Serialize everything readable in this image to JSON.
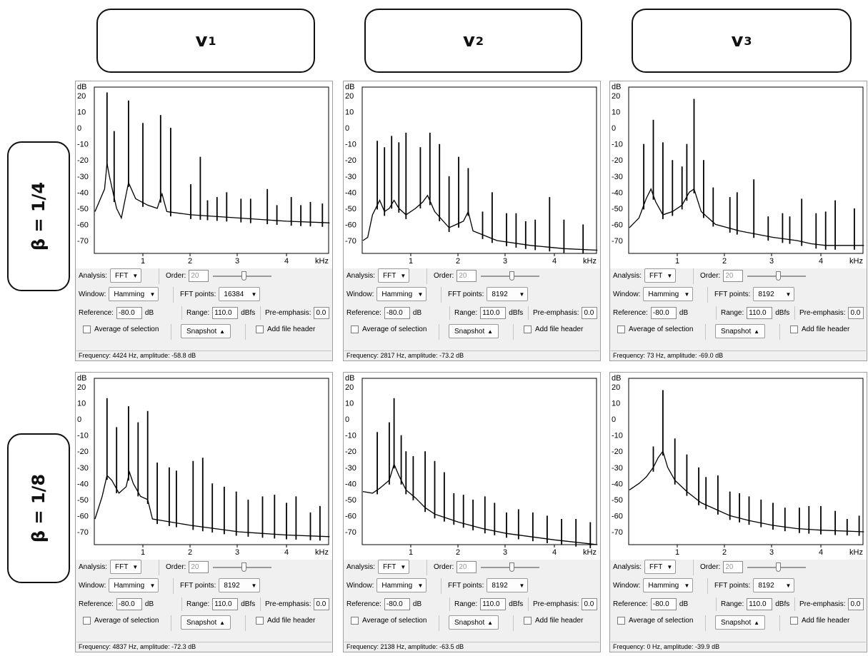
{
  "col_headers": [
    {
      "base": "v",
      "sub": "1"
    },
    {
      "base": "v",
      "sub": "2"
    },
    {
      "base": "v",
      "sub": "3"
    }
  ],
  "row_headers": [
    "β = 1/4",
    "β = 1/8"
  ],
  "common": {
    "db_unit": "dB",
    "khz_unit": "kHz",
    "y_ticks": [
      "20",
      "10",
      "0",
      "-10",
      "-20",
      "-30",
      "-40",
      "-50",
      "-60",
      "-70"
    ],
    "x_ticks": [
      "1",
      "2",
      "3",
      "4"
    ],
    "analysis_label": "Analysis:",
    "analysis_value": "FFT",
    "order_label": "Order:",
    "order_value": "20",
    "window_label": "Window:",
    "window_value": "Hamming",
    "fft_points_label": "FFT points:",
    "reference_label": "Reference:",
    "reference_value": "-80.0",
    "reference_unit": "dB",
    "range_label": "Range:",
    "range_value": "110.0",
    "range_unit": "dBfs",
    "preemphasis_label": "Pre-emphasis:",
    "preemphasis_value": "0.0",
    "average_label": "Average of selection",
    "snapshot_label": "Snapshot",
    "add_header_label": "Add file header"
  },
  "panels": [
    {
      "fft_points": "16384",
      "status": "Frequency: 4424 Hz, amplitude: -58.8 dB"
    },
    {
      "fft_points": "8192",
      "status": "Frequency: 2817 Hz, amplitude: -73.2 dB"
    },
    {
      "fft_points": "8192",
      "status": "Frequency: 73 Hz, amplitude: -69.0 dB"
    },
    {
      "fft_points": "8192",
      "status": "Frequency: 4837 Hz, amplitude: -72.3 dB"
    },
    {
      "fft_points": "8192",
      "status": "Frequency: 2138 Hz, amplitude: -63.5 dB"
    },
    {
      "fft_points": "8192",
      "status": "Frequency: 0 Hz, amplitude: -39.9 dB"
    }
  ],
  "chart_data": [
    {
      "type": "line",
      "xlabel": "kHz",
      "ylabel": "dB",
      "xlim": [
        0,
        4.9
      ],
      "ylim": [
        -80,
        25
      ],
      "baseline": [
        [
          0,
          -52
        ],
        [
          0.2,
          -38
        ],
        [
          0.25,
          -22
        ],
        [
          0.3,
          -30
        ],
        [
          0.45,
          -50
        ],
        [
          0.55,
          -56
        ],
        [
          0.7,
          -34
        ],
        [
          0.85,
          -44
        ],
        [
          1.1,
          -48
        ],
        [
          1.3,
          -50
        ],
        [
          1.4,
          -41
        ],
        [
          1.5,
          -52
        ],
        [
          2,
          -54
        ],
        [
          3,
          -56
        ],
        [
          4,
          -58
        ],
        [
          4.9,
          -59
        ]
      ],
      "peaks": [
        [
          0.25,
          22
        ],
        [
          0.4,
          -2
        ],
        [
          0.7,
          17
        ],
        [
          1.0,
          3
        ],
        [
          1.58,
          0
        ],
        [
          1.37,
          8
        ],
        [
          2.2,
          -18
        ],
        [
          2.0,
          -35
        ],
        [
          2.35,
          -45
        ],
        [
          2.55,
          -43
        ],
        [
          2.75,
          -40
        ],
        [
          3.05,
          -44
        ],
        [
          3.25,
          -44
        ],
        [
          3.6,
          -38
        ],
        [
          3.8,
          -48
        ],
        [
          4.1,
          -43
        ],
        [
          4.3,
          -48
        ],
        [
          4.5,
          -46
        ],
        [
          4.75,
          -47
        ]
      ]
    },
    {
      "type": "line",
      "xlabel": "kHz",
      "ylabel": "dB",
      "xlim": [
        0,
        4.9
      ],
      "ylim": [
        -80,
        25
      ],
      "baseline": [
        [
          0,
          -70
        ],
        [
          0.1,
          -68
        ],
        [
          0.2,
          -54
        ],
        [
          0.35,
          -45
        ],
        [
          0.45,
          -52
        ],
        [
          0.55,
          -50
        ],
        [
          0.65,
          -45
        ],
        [
          0.75,
          -50
        ],
        [
          0.9,
          -54
        ],
        [
          1.1,
          -50
        ],
        [
          1.25,
          -46
        ],
        [
          1.35,
          -42
        ],
        [
          1.5,
          -52
        ],
        [
          1.8,
          -62
        ],
        [
          2.1,
          -58
        ],
        [
          2.2,
          -52
        ],
        [
          2.3,
          -64
        ],
        [
          2.8,
          -70
        ],
        [
          3.5,
          -73
        ],
        [
          4.2,
          -75
        ],
        [
          4.9,
          -76
        ]
      ],
      "peaks": [
        [
          0.3,
          -8
        ],
        [
          0.45,
          -12
        ],
        [
          0.6,
          -5
        ],
        [
          0.75,
          -9
        ],
        [
          0.9,
          -3
        ],
        [
          1.2,
          -12
        ],
        [
          1.4,
          -3
        ],
        [
          1.6,
          -10
        ],
        [
          1.8,
          -30
        ],
        [
          2.0,
          -18
        ],
        [
          2.2,
          -25
        ],
        [
          2.5,
          -52
        ],
        [
          2.7,
          -40
        ],
        [
          3.0,
          -53
        ],
        [
          3.2,
          -53
        ],
        [
          3.4,
          -58
        ],
        [
          3.6,
          -57
        ],
        [
          3.9,
          -43
        ],
        [
          4.2,
          -57
        ],
        [
          4.6,
          -60
        ]
      ]
    },
    {
      "type": "line",
      "xlabel": "kHz",
      "ylabel": "dB",
      "xlim": [
        0,
        4.9
      ],
      "ylim": [
        -80,
        25
      ],
      "baseline": [
        [
          0,
          -62
        ],
        [
          0.2,
          -56
        ],
        [
          0.35,
          -44
        ],
        [
          0.45,
          -38
        ],
        [
          0.55,
          -46
        ],
        [
          0.7,
          -54
        ],
        [
          0.9,
          -52
        ],
        [
          1.1,
          -48
        ],
        [
          1.25,
          -40
        ],
        [
          1.35,
          -38
        ],
        [
          1.5,
          -52
        ],
        [
          1.8,
          -60
        ],
        [
          2.3,
          -64
        ],
        [
          3.0,
          -68
        ],
        [
          3.5,
          -70
        ],
        [
          3.8,
          -72
        ],
        [
          4.1,
          -73
        ],
        [
          4.9,
          -73
        ]
      ],
      "peaks": [
        [
          0.3,
          -10
        ],
        [
          0.5,
          5
        ],
        [
          0.7,
          -9
        ],
        [
          0.9,
          -20
        ],
        [
          1.1,
          -24
        ],
        [
          1.2,
          -10
        ],
        [
          1.35,
          18
        ],
        [
          1.55,
          -20
        ],
        [
          1.75,
          -37
        ],
        [
          2.1,
          -43
        ],
        [
          2.25,
          -40
        ],
        [
          2.6,
          -32
        ],
        [
          2.9,
          -55
        ],
        [
          3.2,
          -53
        ],
        [
          3.35,
          -55
        ],
        [
          3.6,
          -44
        ],
        [
          3.9,
          -53
        ],
        [
          4.1,
          -52
        ],
        [
          4.3,
          -45
        ],
        [
          4.7,
          -50
        ]
      ]
    },
    {
      "type": "line",
      "xlabel": "kHz",
      "ylabel": "dB",
      "xlim": [
        0,
        4.9
      ],
      "ylim": [
        -80,
        25
      ],
      "baseline": [
        [
          0,
          -62
        ],
        [
          0.15,
          -48
        ],
        [
          0.25,
          -35
        ],
        [
          0.35,
          -38
        ],
        [
          0.5,
          -46
        ],
        [
          0.65,
          -42
        ],
        [
          0.72,
          -33
        ],
        [
          0.8,
          -40
        ],
        [
          0.95,
          -48
        ],
        [
          1.1,
          -50
        ],
        [
          1.2,
          -62
        ],
        [
          1.6,
          -64
        ],
        [
          2.0,
          -66
        ],
        [
          2.5,
          -68
        ],
        [
          3.0,
          -70
        ],
        [
          3.5,
          -71
        ],
        [
          4.0,
          -72
        ],
        [
          4.9,
          -73
        ]
      ],
      "peaks": [
        [
          0.25,
          13
        ],
        [
          0.45,
          -5
        ],
        [
          0.7,
          8
        ],
        [
          0.9,
          -2
        ],
        [
          1.1,
          5
        ],
        [
          1.3,
          -27
        ],
        [
          1.55,
          -30
        ],
        [
          1.7,
          -32
        ],
        [
          2.05,
          -26
        ],
        [
          2.25,
          -24
        ],
        [
          2.45,
          -40
        ],
        [
          2.7,
          -42
        ],
        [
          2.95,
          -45
        ],
        [
          3.2,
          -50
        ],
        [
          3.5,
          -48
        ],
        [
          3.75,
          -47
        ],
        [
          4.0,
          -52
        ],
        [
          4.2,
          -48
        ],
        [
          4.5,
          -58
        ],
        [
          4.7,
          -54
        ]
      ]
    },
    {
      "type": "line",
      "xlabel": "kHz",
      "ylabel": "dB",
      "xlim": [
        0,
        4.9
      ],
      "ylim": [
        -80,
        25
      ],
      "baseline": [
        [
          0,
          -45
        ],
        [
          0.2,
          -46
        ],
        [
          0.35,
          -43
        ],
        [
          0.55,
          -38
        ],
        [
          0.65,
          -28
        ],
        [
          0.75,
          -35
        ],
        [
          0.9,
          -44
        ],
        [
          1.1,
          -49
        ],
        [
          1.3,
          -55
        ],
        [
          1.5,
          -59
        ],
        [
          1.7,
          -61
        ],
        [
          2.0,
          -64
        ],
        [
          2.5,
          -68
        ],
        [
          3.0,
          -71
        ],
        [
          3.5,
          -73
        ],
        [
          4.0,
          -75
        ],
        [
          4.9,
          -78
        ]
      ],
      "peaks": [
        [
          0.3,
          -8
        ],
        [
          0.55,
          -2
        ],
        [
          0.65,
          13
        ],
        [
          0.8,
          -10
        ],
        [
          0.9,
          -20
        ],
        [
          1.05,
          -23
        ],
        [
          1.3,
          -20
        ],
        [
          1.5,
          -26
        ],
        [
          1.7,
          -33
        ],
        [
          1.9,
          -46
        ],
        [
          2.1,
          -47
        ],
        [
          2.3,
          -50
        ],
        [
          2.55,
          -48
        ],
        [
          2.75,
          -52
        ],
        [
          3.0,
          -58
        ],
        [
          3.25,
          -56
        ],
        [
          3.55,
          -58
        ],
        [
          3.85,
          -60
        ],
        [
          4.15,
          -62
        ],
        [
          4.45,
          -62
        ],
        [
          4.75,
          -64
        ]
      ]
    },
    {
      "type": "line",
      "xlabel": "kHz",
      "ylabel": "dB",
      "xlim": [
        0,
        4.9
      ],
      "ylim": [
        -80,
        25
      ],
      "baseline": [
        [
          0,
          -44
        ],
        [
          0.2,
          -40
        ],
        [
          0.35,
          -36
        ],
        [
          0.5,
          -30
        ],
        [
          0.6,
          -24
        ],
        [
          0.7,
          -20
        ],
        [
          0.8,
          -30
        ],
        [
          0.95,
          -38
        ],
        [
          1.2,
          -45
        ],
        [
          1.5,
          -52
        ],
        [
          1.8,
          -56
        ],
        [
          2.1,
          -60
        ],
        [
          2.5,
          -63
        ],
        [
          3.0,
          -66
        ],
        [
          3.5,
          -68
        ],
        [
          4.0,
          -69
        ],
        [
          4.9,
          -70
        ]
      ],
      "peaks": [
        [
          0.7,
          18
        ],
        [
          0.5,
          -17
        ],
        [
          0.95,
          -12
        ],
        [
          1.2,
          -22
        ],
        [
          1.45,
          -30
        ],
        [
          1.6,
          -36
        ],
        [
          1.85,
          -35
        ],
        [
          2.1,
          -45
        ],
        [
          2.3,
          -46
        ],
        [
          2.5,
          -48
        ],
        [
          2.75,
          -50
        ],
        [
          3.0,
          -52
        ],
        [
          3.25,
          -55
        ],
        [
          3.55,
          -55
        ],
        [
          3.75,
          -54
        ],
        [
          4.0,
          -54
        ],
        [
          4.3,
          -57
        ],
        [
          4.55,
          -62
        ],
        [
          4.8,
          -60
        ]
      ]
    }
  ]
}
